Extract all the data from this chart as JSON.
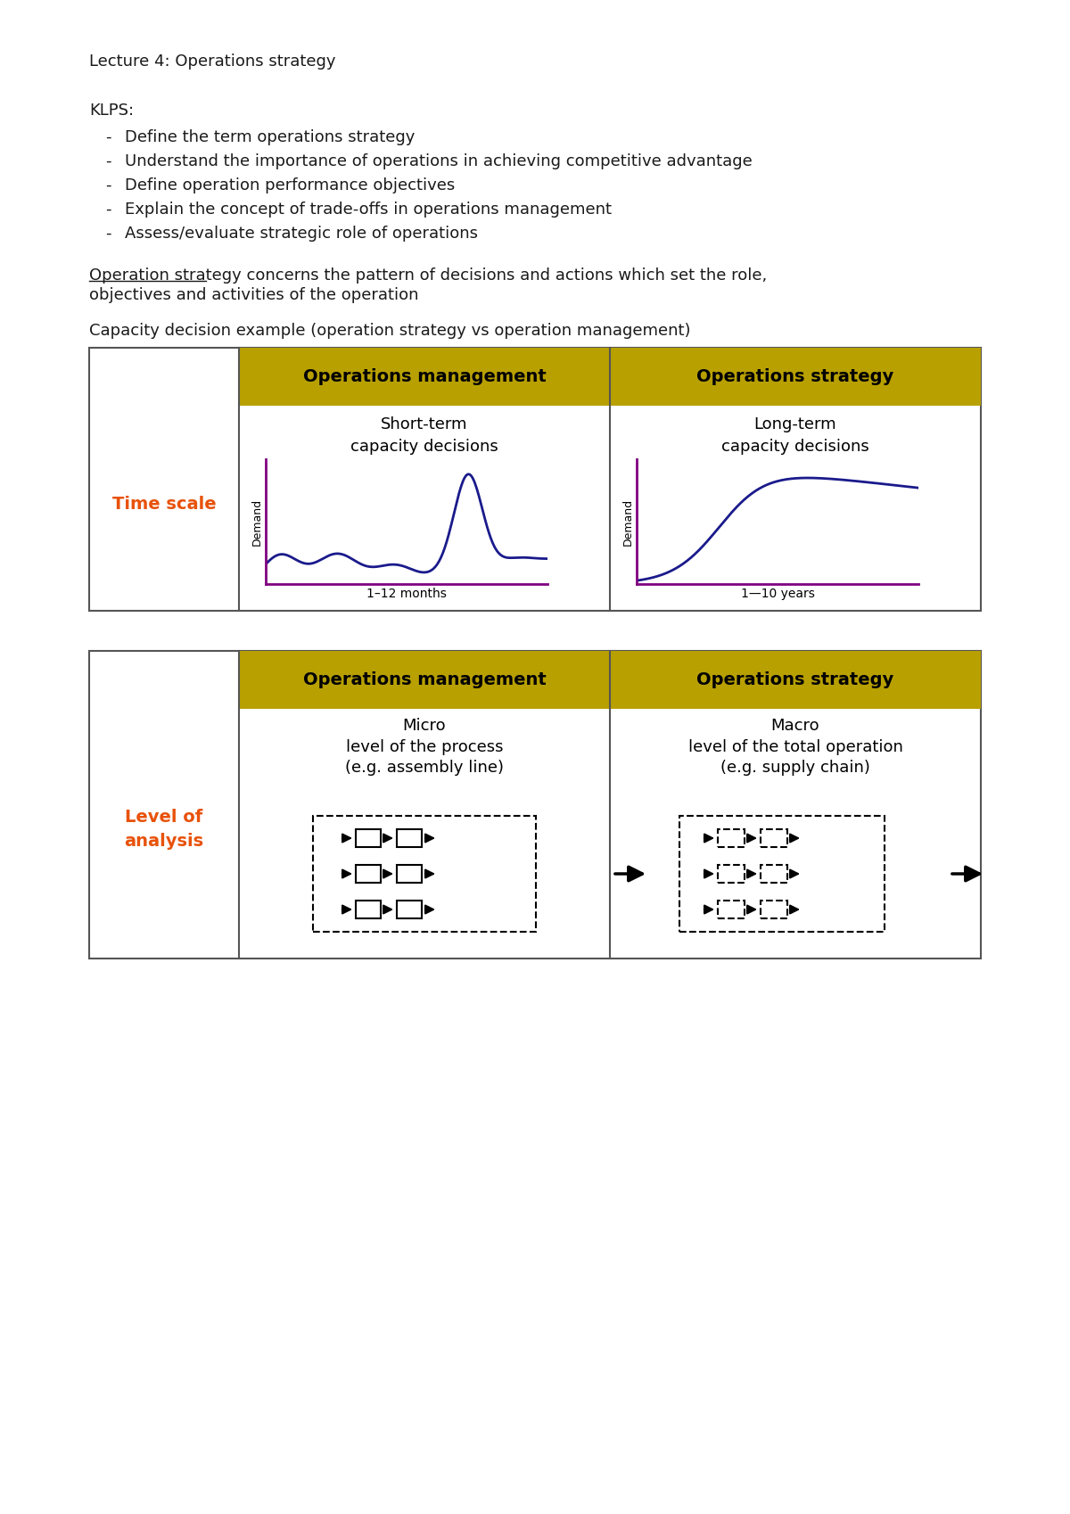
{
  "title": "Lecture 4: Operations strategy",
  "klps_label": "KLPS:",
  "klps_items": [
    "Define the term operations strategy",
    "Understand the importance of operations in achieving competitive advantage",
    "Define operation performance objectives",
    "Explain the concept of trade-offs in operations management",
    "Assess/evaluate strategic role of operations"
  ],
  "definition_underline": "Operation strategy",
  "definition_rest_line1": " concerns the pattern of decisions and actions which set the role,",
  "definition_rest_line2": "objectives and activities of the operation",
  "capacity_label": "Capacity decision example (operation strategy vs operation management)",
  "table1_header1": "Operations management",
  "table1_header2": "Operations strategy",
  "table1_row_label": "Time scale",
  "table1_cell1_title": "Short-term\ncapacity decisions",
  "table1_cell1_xlabel": "1–12 months",
  "table1_cell2_title": "Long-term\ncapacity decisions",
  "table1_cell2_xlabel": "1—10 years",
  "table2_header1": "Operations management",
  "table2_header2": "Operations strategy",
  "table2_row_label": "Level of\nanalysis",
  "table2_cell1_title": "Micro\nlevel of the process\n(e.g. assembly line)",
  "table2_cell2_title": "Macro\nlevel of the total operation\n(e.g. supply chain)",
  "gold_color": "#B8A000",
  "orange_color": "#E8520A",
  "navy_color": "#1A1A8C",
  "purple_color": "#800080",
  "text_color": "#1a1a1a",
  "bg_color": "#ffffff"
}
